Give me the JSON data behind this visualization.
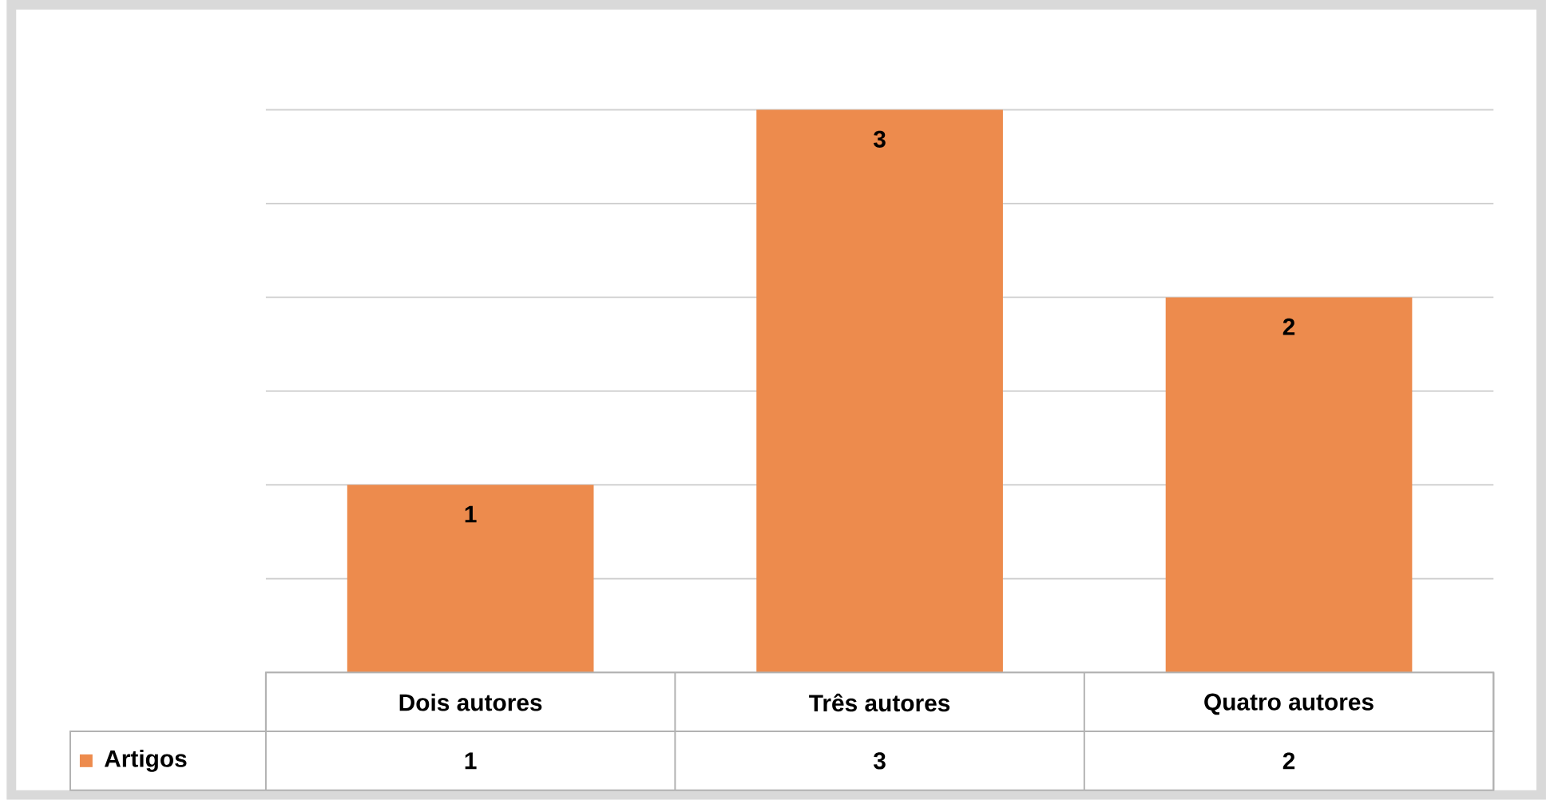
{
  "chart_data": {
    "type": "bar",
    "categories": [
      "Dois autores",
      "Três autores",
      "Quatro autores"
    ],
    "series": [
      {
        "name": "Artigos",
        "color": "#ed8b4d",
        "values": [
          1,
          3,
          2
        ],
        "value_labels": [
          "1",
          "3",
          "2"
        ]
      }
    ],
    "ylim": [
      0,
      3
    ],
    "yticks": [
      {
        "value": 0,
        "label": null
      },
      {
        "value": 0.5,
        "label": null
      },
      {
        "value": 1,
        "label": null
      },
      {
        "value": 1.5,
        "label": null
      },
      {
        "value": 2,
        "label": null
      },
      {
        "value": 2.5,
        "label": null
      },
      {
        "value": 3,
        "label": null
      }
    ],
    "tick_labels": "x",
    "grid": "y",
    "legend": "bottom left"
  }
}
